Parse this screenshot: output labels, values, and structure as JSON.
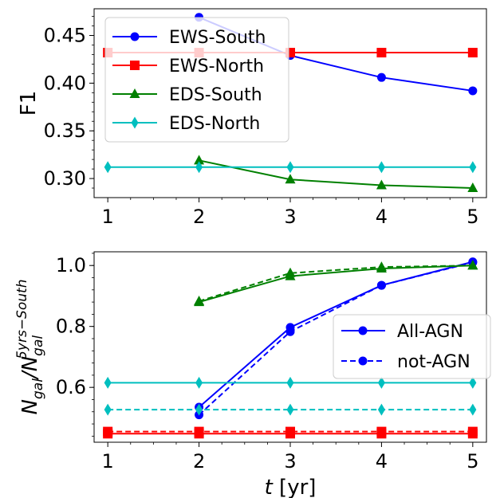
{
  "chart_data": [
    {
      "type": "line",
      "title": "",
      "xlabel": "",
      "ylabel": "F1",
      "xlim": [
        0.85,
        5.15
      ],
      "ylim": [
        0.28,
        0.478
      ],
      "xticks": [
        1,
        2,
        3,
        4,
        5
      ],
      "yticks": [
        0.3,
        0.35,
        0.4,
        0.45
      ],
      "ytick_labels": [
        "0.30",
        "0.35",
        "0.40",
        "0.45"
      ],
      "legend": "upper-left",
      "series": [
        {
          "name": "EWS-South",
          "color": "#0000ff",
          "marker": "circle",
          "dash": "solid",
          "x": [
            2,
            3,
            4,
            5
          ],
          "y": [
            0.469,
            0.429,
            0.406,
            0.392
          ]
        },
        {
          "name": "EWS-North",
          "color": "#ff0000",
          "marker": "square",
          "dash": "solid",
          "x": [
            1,
            2,
            3,
            4,
            5
          ],
          "y": [
            0.432,
            0.432,
            0.432,
            0.432,
            0.432
          ]
        },
        {
          "name": "EDS-South",
          "color": "#008000",
          "marker": "triangle",
          "dash": "solid",
          "x": [
            2,
            3,
            4,
            5
          ],
          "y": [
            0.319,
            0.299,
            0.293,
            0.29
          ]
        },
        {
          "name": "EDS-North",
          "color": "#00bfbf",
          "marker": "diamond",
          "dash": "solid",
          "x": [
            1,
            2,
            3,
            4,
            5
          ],
          "y": [
            0.312,
            0.312,
            0.312,
            0.312,
            0.312
          ]
        }
      ]
    },
    {
      "type": "line",
      "title": "",
      "xlabel": "t [yr]",
      "ylabel": "N_gal / N_gal^(5yrs-South)",
      "xlim": [
        0.85,
        5.15
      ],
      "ylim": [
        0.42,
        1.045
      ],
      "xticks": [
        1,
        2,
        3,
        4,
        5
      ],
      "yticks": [
        0.6,
        0.8,
        1.0
      ],
      "ytick_labels": [
        "0.6",
        "0.8",
        "1.0"
      ],
      "legend": "center-right",
      "legend_entries": [
        {
          "label": "All-AGN",
          "color": "#0000ff",
          "dash": "solid"
        },
        {
          "label": "not-AGN",
          "color": "#0000ff",
          "dash": "dashed"
        }
      ],
      "series": [
        {
          "color": "#0000ff",
          "marker": "circle",
          "dash": "solid",
          "x": [
            2,
            3,
            4,
            5
          ],
          "y": [
            0.535,
            0.797,
            0.935,
            1.012
          ]
        },
        {
          "color": "#0000ff",
          "marker": "circle",
          "dash": "dashed",
          "x": [
            2,
            3,
            4,
            5
          ],
          "y": [
            0.51,
            0.783,
            0.935,
            1.01
          ]
        },
        {
          "color": "#008000",
          "marker": "triangle",
          "dash": "solid",
          "x": [
            2,
            3,
            4,
            5
          ],
          "y": [
            0.88,
            0.965,
            0.99,
            1.0
          ]
        },
        {
          "color": "#008000",
          "marker": "triangle",
          "dash": "dashed",
          "x": [
            2,
            3,
            4,
            5
          ],
          "y": [
            0.883,
            0.975,
            0.995,
            1.0
          ]
        },
        {
          "color": "#00bfbf",
          "marker": "diamond",
          "dash": "solid",
          "x": [
            1,
            2,
            3,
            4,
            5
          ],
          "y": [
            0.615,
            0.615,
            0.615,
            0.615,
            0.615
          ]
        },
        {
          "color": "#00bfbf",
          "marker": "diamond",
          "dash": "dashed",
          "x": [
            1,
            2,
            3,
            4,
            5
          ],
          "y": [
            0.527,
            0.527,
            0.527,
            0.527,
            0.527
          ]
        },
        {
          "color": "#ff0000",
          "marker": "square",
          "dash": "solid",
          "x": [
            1,
            2,
            3,
            4,
            5
          ],
          "y": [
            0.448,
            0.448,
            0.448,
            0.448,
            0.448
          ]
        },
        {
          "color": "#ff0000",
          "marker": "square",
          "dash": "dashed",
          "x": [
            1,
            2,
            3,
            4,
            5
          ],
          "y": [
            0.455,
            0.455,
            0.455,
            0.455,
            0.455
          ]
        }
      ]
    }
  ]
}
